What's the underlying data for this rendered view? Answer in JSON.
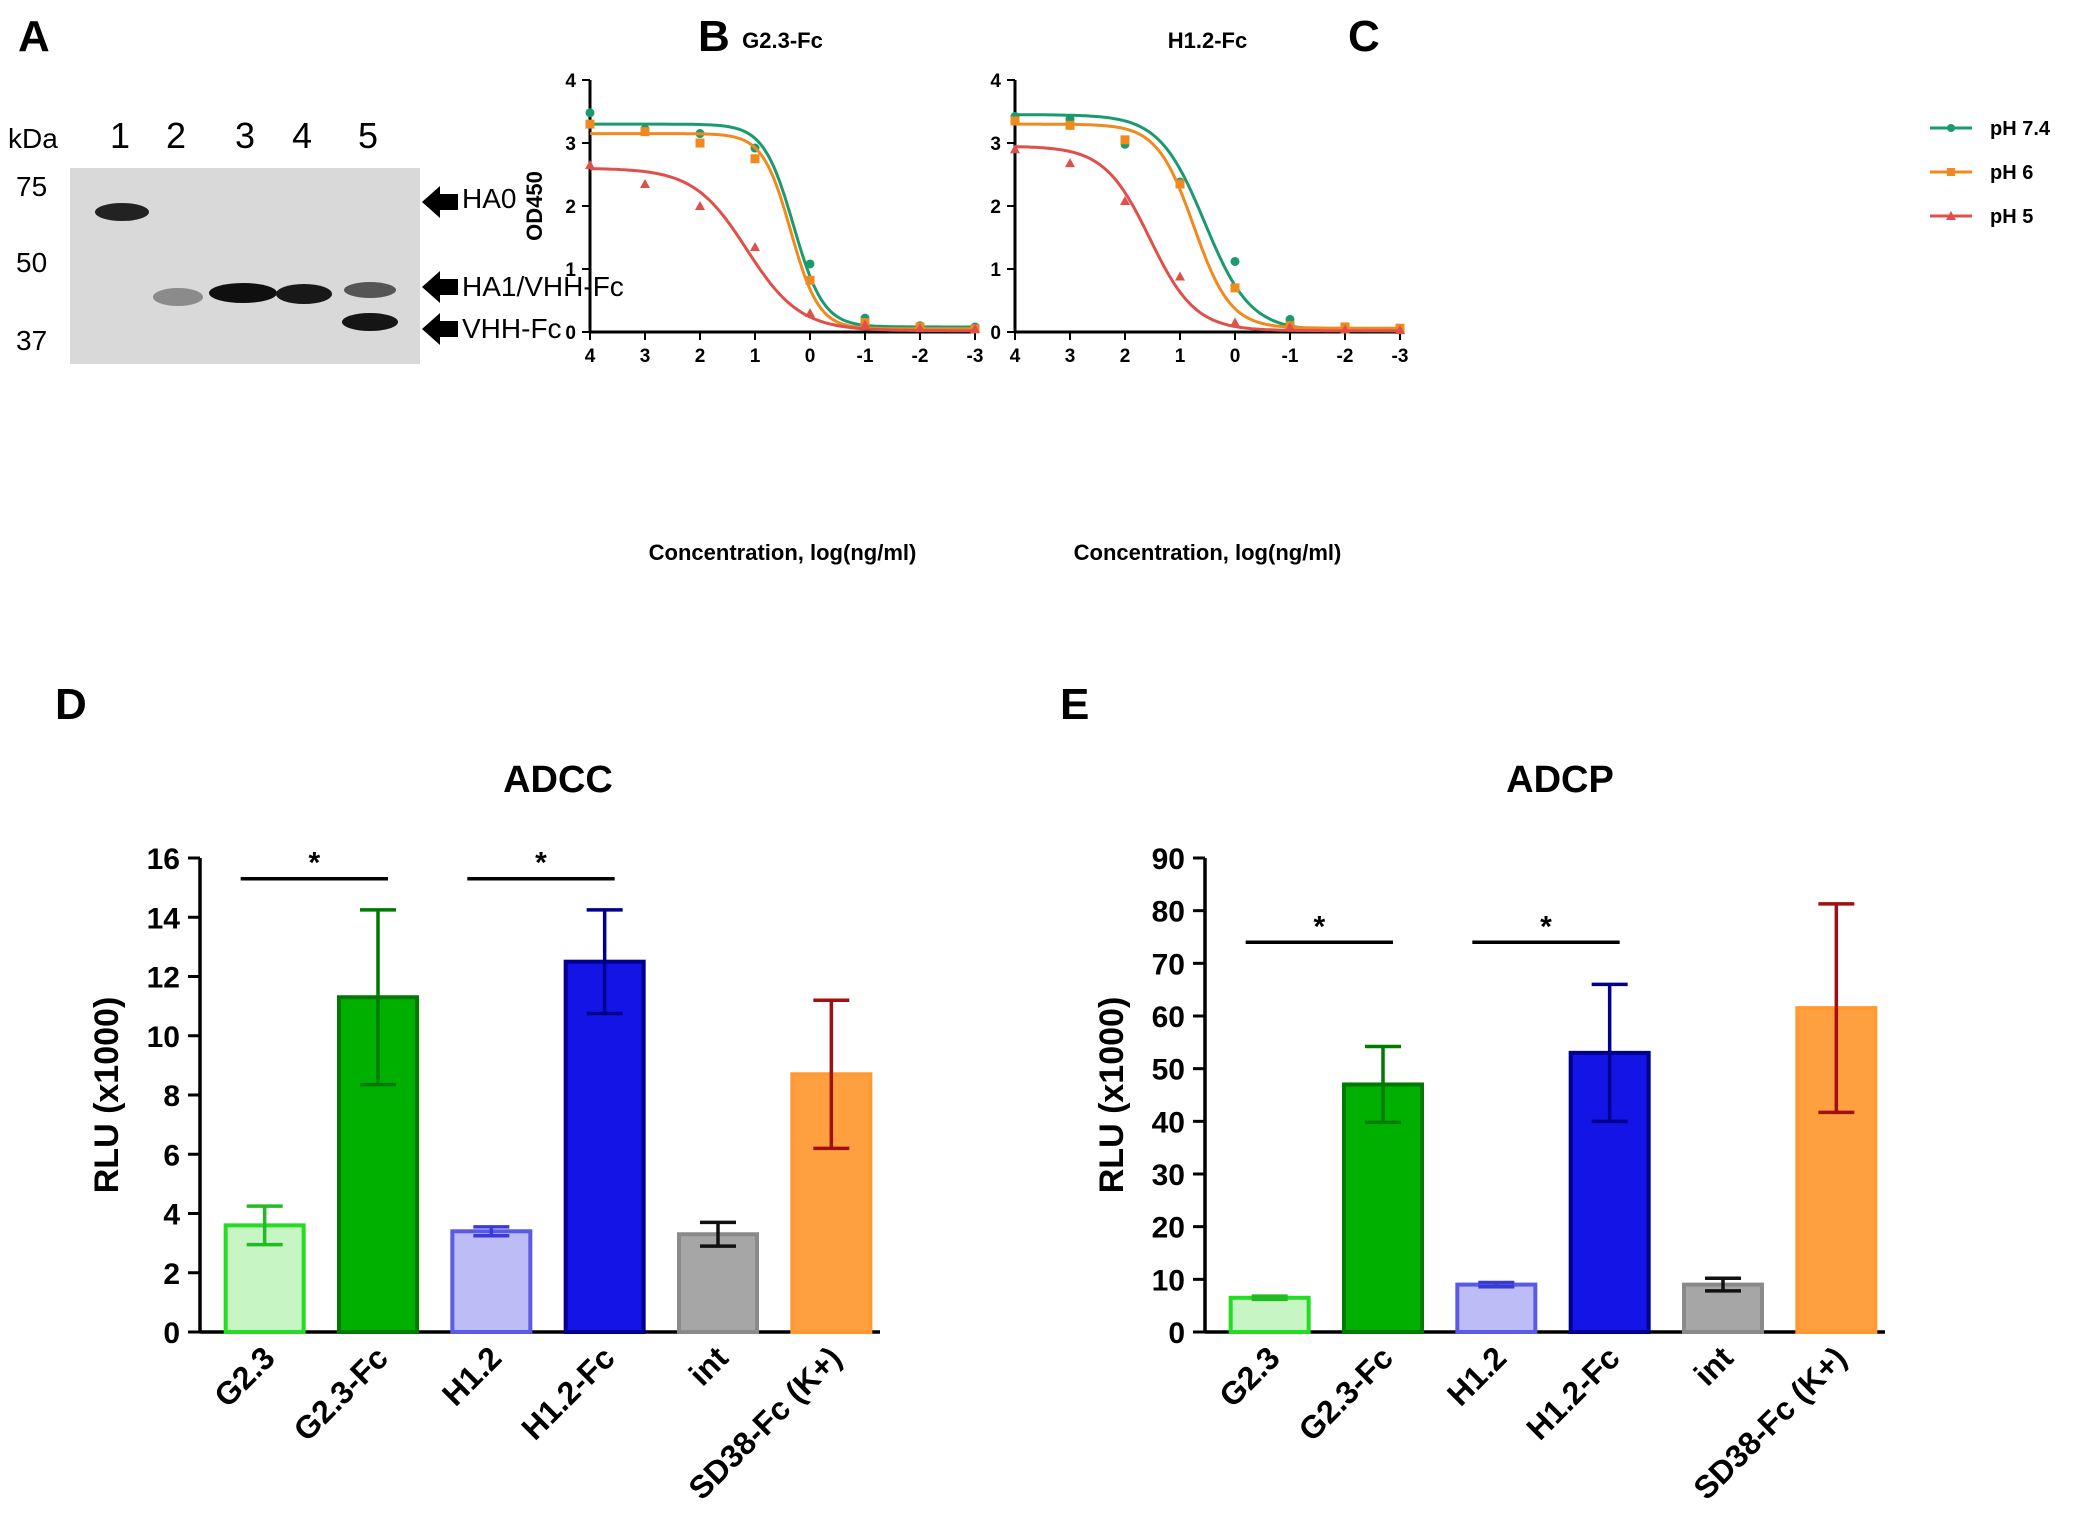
{
  "panels": {
    "a": "A",
    "b": "B",
    "c": "C",
    "d": "D",
    "e": "E"
  },
  "gel": {
    "lanes": [
      "1",
      "2",
      "3",
      "4",
      "5"
    ],
    "kda_label": "kDa",
    "markers": [
      "75",
      "50",
      "37"
    ],
    "arrows": [
      "HA0",
      "HA1/VHH-Fc",
      "VHH-Fc"
    ],
    "bg_color": "#d9d9d9",
    "band_color": "#111111"
  },
  "chart_data": [
    {
      "id": "B",
      "type": "line",
      "title": "G2.3-Fc",
      "xlabel": "Concentration, log(ng/ml)",
      "ylabel": "OD450",
      "xlim": [
        4,
        -3
      ],
      "ylim": [
        0,
        4
      ],
      "xticks": [
        "4",
        "3",
        "2",
        "1",
        "0",
        "-1",
        "-2",
        "-3"
      ],
      "yticks": [
        "0",
        "1",
        "2",
        "3",
        "4"
      ],
      "series": [
        {
          "name": "pH 7.4",
          "color": "#1a9b6f",
          "marker": "circle",
          "fit": {
            "top": 3.3,
            "bottom": 0.08,
            "ec50": 0.3,
            "hill": 1.6
          },
          "points": [
            [
              4,
              3.48
            ],
            [
              3,
              3.22
            ],
            [
              2,
              3.15
            ],
            [
              1,
              2.92
            ],
            [
              0,
              1.08
            ],
            [
              -1,
              0.22
            ],
            [
              -2,
              0.1
            ],
            [
              -3,
              0.08
            ]
          ]
        },
        {
          "name": "pH 6",
          "color": "#f08a1e",
          "marker": "square",
          "fit": {
            "top": 3.15,
            "bottom": 0.05,
            "ec50": 0.35,
            "hill": 1.7
          },
          "points": [
            [
              4,
              3.3
            ],
            [
              3,
              3.18
            ],
            [
              2,
              3.0
            ],
            [
              1,
              2.75
            ],
            [
              0,
              0.82
            ],
            [
              -1,
              0.15
            ],
            [
              -2,
              0.08
            ],
            [
              -3,
              0.05
            ]
          ]
        },
        {
          "name": "pH 5",
          "color": "#e0504a",
          "marker": "triangle",
          "fit": {
            "top": 2.6,
            "bottom": 0.02,
            "ec50": 1.15,
            "hill": 0.9
          },
          "points": [
            [
              4,
              2.65
            ],
            [
              3,
              2.35
            ],
            [
              2,
              2.0
            ],
            [
              1,
              1.35
            ],
            [
              0,
              0.3
            ],
            [
              -1,
              0.12
            ],
            [
              -2,
              0.06
            ],
            [
              -3,
              0.05
            ]
          ]
        }
      ]
    },
    {
      "id": "C",
      "type": "line",
      "title": "H1.2-Fc",
      "xlabel": "Concentration, log(ng/ml)",
      "ylabel": "",
      "xlim": [
        4,
        -3
      ],
      "ylim": [
        0,
        4
      ],
      "xticks": [
        "4",
        "3",
        "2",
        "1",
        "0",
        "-1",
        "-2",
        "-3"
      ],
      "yticks": [
        "0",
        "1",
        "2",
        "3",
        "4"
      ],
      "series": [
        {
          "name": "pH 7.4",
          "color": "#1a9b6f",
          "marker": "circle",
          "fit": {
            "top": 3.45,
            "bottom": 0.02,
            "ec50": 0.55,
            "hill": 1.05
          },
          "points": [
            [
              4,
              3.42
            ],
            [
              3,
              3.38
            ],
            [
              2,
              2.98
            ],
            [
              1,
              2.38
            ],
            [
              0,
              1.12
            ],
            [
              -1,
              0.2
            ],
            [
              -2,
              0.08
            ],
            [
              -3,
              0.04
            ]
          ]
        },
        {
          "name": "pH 6",
          "color": "#f08a1e",
          "marker": "square",
          "fit": {
            "top": 3.3,
            "bottom": 0.06,
            "ec50": 0.75,
            "hill": 1.3
          },
          "points": [
            [
              4,
              3.35
            ],
            [
              3,
              3.28
            ],
            [
              2,
              3.05
            ],
            [
              1,
              2.35
            ],
            [
              0,
              0.7
            ],
            [
              -1,
              0.1
            ],
            [
              -2,
              0.08
            ],
            [
              -3,
              0.06
            ]
          ]
        },
        {
          "name": "pH 5",
          "color": "#e0504a",
          "marker": "triangle",
          "fit": {
            "top": 2.95,
            "bottom": 0.02,
            "ec50": 1.55,
            "hill": 1.05
          },
          "points": [
            [
              4,
              2.9
            ],
            [
              3,
              2.68
            ],
            [
              2,
              2.08
            ],
            [
              1,
              0.88
            ],
            [
              0,
              0.15
            ],
            [
              -1,
              0.08
            ],
            [
              -2,
              0.04
            ],
            [
              -3,
              0.03
            ]
          ]
        }
      ]
    },
    {
      "id": "D",
      "type": "bar",
      "title": "ADCC",
      "ylabel": "RLU (x1000)",
      "ylim": [
        0,
        16
      ],
      "yticks": [
        "0",
        "2",
        "4",
        "6",
        "8",
        "10",
        "12",
        "14",
        "16"
      ],
      "categories": [
        "G2.3",
        "G2.3-Fc",
        "H1.2",
        "H1.2-Fc",
        "int",
        "SD38-Fc (K+)"
      ],
      "values": [
        3.6,
        11.3,
        3.4,
        12.5,
        3.3,
        8.7
      ],
      "errors": [
        0.65,
        2.95,
        0.15,
        1.75,
        0.4,
        2.5
      ],
      "significance": [
        {
          "from": 0,
          "to": 1,
          "label": "*",
          "y": 15.3
        },
        {
          "from": 2,
          "to": 3,
          "label": "*",
          "y": 15.3
        }
      ]
    },
    {
      "id": "E",
      "type": "bar",
      "title": "ADCP",
      "ylabel": "RLU (x1000)",
      "ylim": [
        0,
        90
      ],
      "yticks": [
        "0",
        "10",
        "20",
        "30",
        "40",
        "50",
        "60",
        "70",
        "80",
        "90"
      ],
      "categories": [
        "G2.3",
        "G2.3-Fc",
        "H1.2",
        "H1.2-Fc",
        "int",
        "SD38-Fc (K+)"
      ],
      "values": [
        6.5,
        47,
        9,
        53,
        9,
        61.5
      ],
      "errors": [
        0.3,
        7.2,
        0.4,
        13,
        1.2,
        19.8
      ],
      "significance": [
        {
          "from": 0,
          "to": 1,
          "label": "*",
          "y": 74
        },
        {
          "from": 2,
          "to": 3,
          "label": "*",
          "y": 74
        }
      ]
    }
  ],
  "bar_styles": [
    {
      "fill": "#c8f5c4",
      "stroke": "#22dd22"
    },
    {
      "fill": "#00b000",
      "stroke": "#007a00"
    },
    {
      "fill": "#bcbcf6",
      "stroke": "#5a5ae6"
    },
    {
      "fill": "#1414e6",
      "stroke": "#00008c"
    },
    {
      "fill": "#a6a6a6",
      "stroke": "#8a8a8a"
    },
    {
      "fill": "#ffa040",
      "stroke": "#ff9a33"
    }
  ],
  "error_colors": [
    "#22bb22",
    "#007a00",
    "#3a3ad6",
    "#00008c",
    "#111111",
    "#a01010"
  ],
  "legend": {
    "position": "top-right",
    "items": [
      {
        "label": "pH 7.4",
        "color": "#1a9b6f"
      },
      {
        "label": "pH 6",
        "color": "#f08a1e"
      },
      {
        "label": "pH 5",
        "color": "#e0504a"
      }
    ]
  }
}
